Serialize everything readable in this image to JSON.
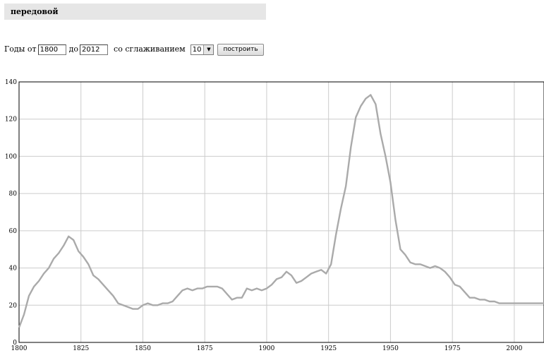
{
  "word": "передовой",
  "form": {
    "years_from_label": "Годы от",
    "year_from": "1800",
    "years_to_label": "до",
    "year_to": "2012",
    "smoothing_label": "со сглаживанием",
    "smoothing_value": "10",
    "build_label": "построить"
  },
  "chart_data": {
    "type": "line",
    "title": "",
    "xlabel": "",
    "ylabel": "",
    "xlim": [
      1800,
      2012
    ],
    "ylim": [
      0,
      140
    ],
    "grid": true,
    "x_ticks": [
      1800,
      1825,
      1850,
      1875,
      1900,
      1925,
      1950,
      1975,
      2000
    ],
    "y_ticks": [
      0,
      20,
      40,
      60,
      80,
      100,
      120,
      140
    ],
    "line_color": "#aaaaaa",
    "series": [
      {
        "x": [
          1800,
          1802,
          1804,
          1806,
          1808,
          1810,
          1812,
          1814,
          1816,
          1818,
          1820,
          1822,
          1824,
          1826,
          1828,
          1830,
          1832,
          1834,
          1836,
          1838,
          1840,
          1842,
          1844,
          1846,
          1848,
          1850,
          1852,
          1854,
          1856,
          1858,
          1860,
          1862,
          1864,
          1866,
          1868,
          1870,
          1872,
          1874,
          1876,
          1878,
          1880,
          1882,
          1884,
          1886,
          1888,
          1890,
          1892,
          1894,
          1896,
          1898,
          1900,
          1902,
          1904,
          1906,
          1908,
          1910,
          1912,
          1914,
          1916,
          1918,
          1920,
          1922,
          1924,
          1926,
          1928,
          1930,
          1932,
          1934,
          1936,
          1938,
          1940,
          1942,
          1944,
          1946,
          1948,
          1950,
          1952,
          1954,
          1956,
          1958,
          1960,
          1962,
          1964,
          1966,
          1968,
          1970,
          1972,
          1974,
          1976,
          1978,
          1980,
          1982,
          1984,
          1986,
          1988,
          1990,
          1992,
          1994,
          1996,
          1998,
          2000,
          2002,
          2004,
          2006,
          2008,
          2010,
          2012
        ],
        "values": [
          8,
          15,
          25,
          30,
          33,
          37,
          40,
          45,
          48,
          52,
          57,
          55,
          49,
          46,
          42,
          36,
          34,
          31,
          28,
          25,
          21,
          20,
          19,
          18,
          18,
          20,
          21,
          20,
          20,
          21,
          21,
          22,
          25,
          28,
          29,
          28,
          29,
          29,
          30,
          30,
          30,
          29,
          26,
          23,
          24,
          24,
          29,
          28,
          29,
          28,
          29,
          31,
          34,
          35,
          38,
          36,
          32,
          33,
          35,
          37,
          38,
          39,
          37,
          42,
          58,
          72,
          84,
          105,
          121,
          127,
          131,
          133,
          128,
          112,
          100,
          86,
          66,
          50,
          47,
          43,
          42,
          42,
          41,
          40,
          41,
          40,
          38,
          35,
          31,
          30,
          27,
          24,
          24,
          23,
          23,
          22,
          22,
          21,
          21,
          21,
          21,
          21,
          21,
          21,
          21,
          21,
          21
        ]
      }
    ]
  }
}
